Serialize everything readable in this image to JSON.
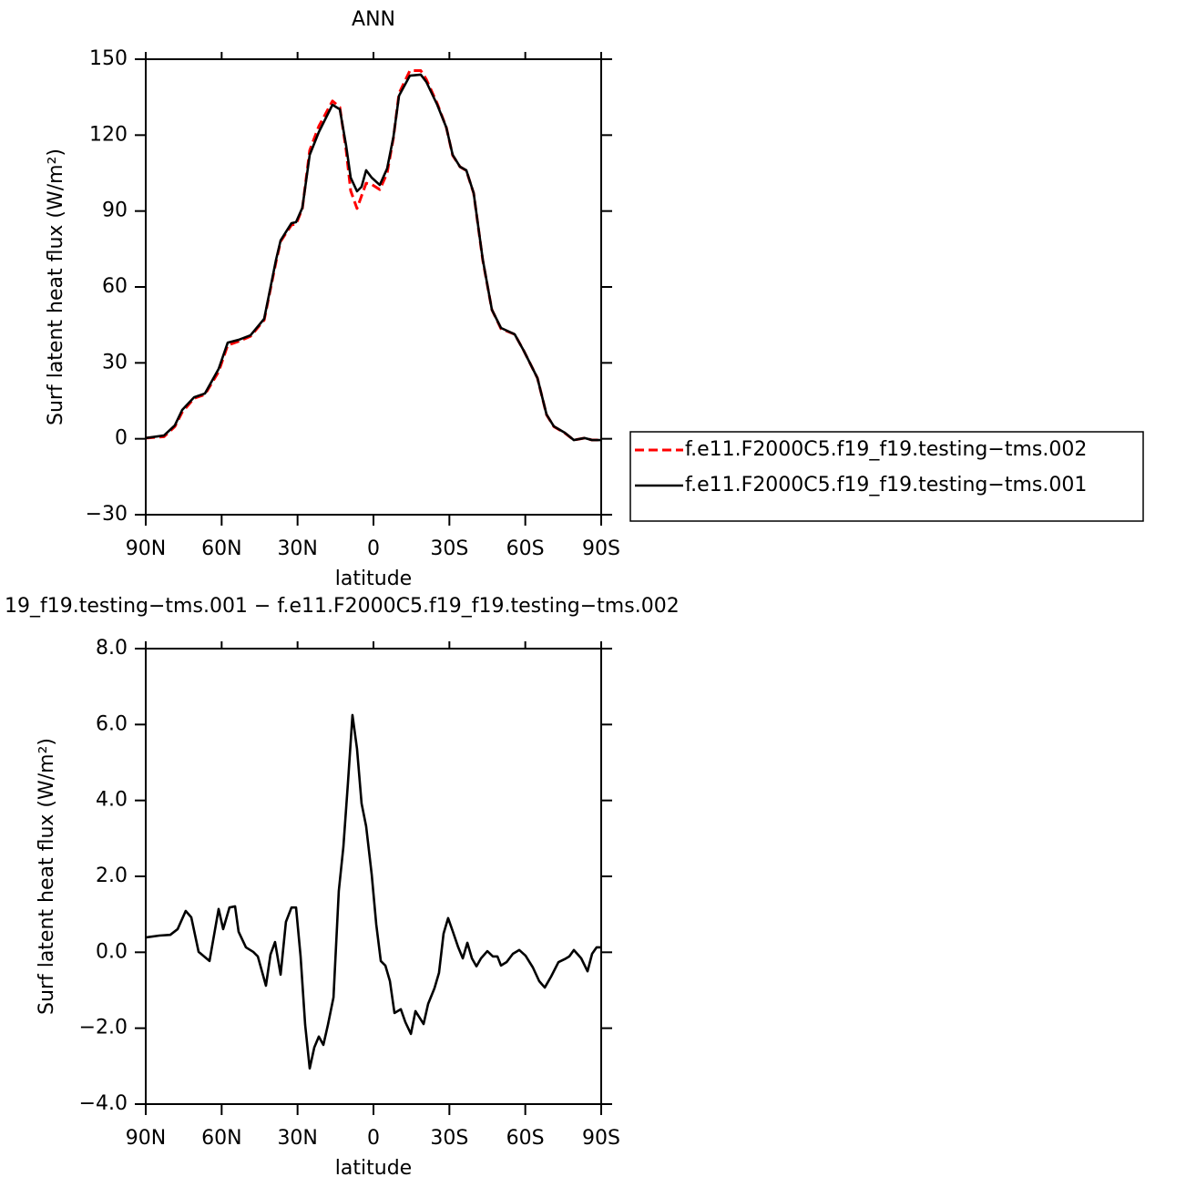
{
  "chart_data": [
    {
      "type": "line",
      "title": "ANN",
      "xlabel": "latitude",
      "ylabel": "Surf latent heat flux (W/m²)",
      "legend": "right",
      "xlim": [
        90,
        -90
      ],
      "xticks": [
        {
          "value": 90,
          "label": "90N"
        },
        {
          "value": 60,
          "label": "60N"
        },
        {
          "value": 30,
          "label": "30N"
        },
        0,
        {
          "value": -30,
          "label": "30S"
        },
        {
          "value": -60,
          "label": "60S"
        },
        {
          "value": -90,
          "label": "90S"
        }
      ],
      "ylim": [
        -30,
        150
      ],
      "yticks": [
        {
          "value": -30,
          "label": "−30"
        },
        0,
        30,
        60,
        90,
        120,
        150
      ],
      "x": [
        90,
        82.8,
        78.5,
        75.6,
        70.9,
        66.6,
        61.2,
        57.6,
        53.3,
        48.6,
        43.2,
        38.5,
        36.7,
        32.4,
        30.6,
        28.1,
        25.2,
        21.6,
        16.2,
        13.3,
        10.8,
        9,
        6.5,
        4.7,
        2.9,
        0.7,
        -2.5,
        -5.4,
        -7.9,
        -10.1,
        -14.4,
        -18.7,
        -20.9,
        -25.2,
        -28.8,
        -31.3,
        -34.2,
        -36.7,
        -39.6,
        -43.2,
        -46.8,
        -50.4,
        -55.8,
        -59.4,
        -64.8,
        -68.4,
        -71.3,
        -75.6,
        -79.2,
        -83.5,
        -86.4,
        -90
      ],
      "series": [
        {
          "name": "f.e11.F2000C5.f19_f19.testing−tms.002",
          "color": "#ff0000",
          "dash": true,
          "values": [
            0.3,
            0.8,
            4.8,
            10.5,
            16,
            17.5,
            26.5,
            37,
            38.5,
            40.5,
            46.9,
            70,
            78,
            84.5,
            84.8,
            91,
            114,
            123.5,
            133.5,
            131,
            114,
            98,
            91,
            96,
            101,
            100.5,
            98.5,
            105,
            119,
            136.5,
            145.5,
            145.5,
            142,
            132.5,
            123,
            112,
            107.5,
            106,
            97,
            70.5,
            51,
            43.5,
            41.3,
            34.8,
            24,
            9.5,
            4.8,
            2.3,
            -0.5,
            0.3,
            -0.5,
            -0.5
          ]
        },
        {
          "name": "f.e11.F2000C5.f19_f19.testing−tms.001",
          "color": "#000000",
          "dash": false,
          "values": [
            0.3,
            1.3,
            5.3,
            11.4,
            16.4,
            17.9,
            27.6,
            38,
            39.1,
            40.9,
            47.4,
            70.8,
            78.4,
            85.2,
            85.6,
            91.3,
            112.2,
            121.2,
            132,
            130.2,
            115.8,
            103.2,
            97.8,
            99.6,
            106.1,
            103.2,
            100.3,
            106.8,
            119.4,
            135.6,
            143.5,
            143.9,
            141,
            132,
            123,
            112.2,
            107.5,
            106.1,
            97.1,
            70.8,
            51,
            43.8,
            41.3,
            34.8,
            24,
            9.6,
            4.9,
            2.4,
            -0.5,
            0.3,
            -0.5,
            -0.5
          ]
        }
      ]
    },
    {
      "type": "line",
      "title": "19_f19.testing−tms.001 − f.e11.F2000C5.f19_f19.testing−tms.002",
      "xlabel": "latitude",
      "ylabel": "Surf latent heat flux (W/m²)",
      "xlim": [
        90,
        -90
      ],
      "xticks": [
        {
          "value": 90,
          "label": "90N"
        },
        {
          "value": 60,
          "label": "60N"
        },
        {
          "value": 30,
          "label": "30N"
        },
        0,
        {
          "value": -30,
          "label": "30S"
        },
        {
          "value": -60,
          "label": "60S"
        },
        {
          "value": -90,
          "label": "90S"
        }
      ],
      "ylim": [
        -4,
        8
      ],
      "yticks": [
        {
          "value": -4,
          "label": "−4.0"
        },
        {
          "value": -2,
          "label": "−2.0"
        },
        {
          "value": 0,
          "label": "0.0"
        },
        {
          "value": 2,
          "label": "2.0"
        },
        {
          "value": 4,
          "label": "4.0"
        },
        {
          "value": 6,
          "label": "6.0"
        },
        {
          "value": 8,
          "label": "8.0"
        }
      ],
      "x": [
        90,
        84.6,
        80.3,
        77.4,
        74.2,
        72,
        69.1,
        64.8,
        61.2,
        59.4,
        56.9,
        54.7,
        53.3,
        50.4,
        47.5,
        45.7,
        42.5,
        40.7,
        38.9,
        36.7,
        34.6,
        32.4,
        30.6,
        28.8,
        27,
        25.2,
        23.4,
        21.6,
        19.8,
        18,
        15.8,
        13.7,
        11.9,
        10.1,
        8.3,
        6.5,
        4.7,
        2.9,
        0.7,
        -1.1,
        -2.9,
        -4.7,
        -6.5,
        -8.3,
        -10.8,
        -12.6,
        -14.8,
        -16.6,
        -19.8,
        -21.6,
        -24.1,
        -25.9,
        -27.7,
        -29.5,
        -31.3,
        -33.5,
        -35.3,
        -37.1,
        -38.9,
        -40.7,
        -42.5,
        -45,
        -47.2,
        -49,
        -50.4,
        -52.6,
        -55.1,
        -57.6,
        -60.1,
        -63,
        -65.5,
        -67.7,
        -70.2,
        -73.1,
        -75.6,
        -77.4,
        -79.2,
        -82.1,
        -84.6,
        -86.4,
        -88.2,
        -90
      ],
      "series": [
        {
          "color": "#000000",
          "dash": false,
          "values": [
            0.39,
            0.44,
            0.46,
            0.61,
            1.09,
            0.92,
            0.01,
            -0.23,
            1.14,
            0.61,
            1.18,
            1.21,
            0.54,
            0.13,
            0.01,
            -0.11,
            -0.88,
            -0.06,
            0.27,
            -0.59,
            0.8,
            1.18,
            1.18,
            -0.11,
            -1.91,
            -3.06,
            -2.51,
            -2.22,
            -2.44,
            -1.91,
            -1.19,
            1.62,
            2.77,
            4.45,
            6.25,
            5.36,
            3.92,
            3.32,
            2.05,
            0.73,
            -0.23,
            -0.35,
            -0.76,
            -1.6,
            -1.5,
            -1.84,
            -2.15,
            -1.55,
            -1.89,
            -1.36,
            -0.95,
            -0.54,
            0.49,
            0.9,
            0.56,
            0.13,
            -0.16,
            0.25,
            -0.16,
            -0.37,
            -0.16,
            0.03,
            -0.11,
            -0.11,
            -0.35,
            -0.26,
            -0.04,
            0.06,
            -0.09,
            -0.4,
            -0.76,
            -0.93,
            -0.64,
            -0.26,
            -0.18,
            -0.11,
            0.06,
            -0.16,
            -0.5,
            -0.04,
            0.13,
            0.13
          ]
        }
      ]
    }
  ]
}
